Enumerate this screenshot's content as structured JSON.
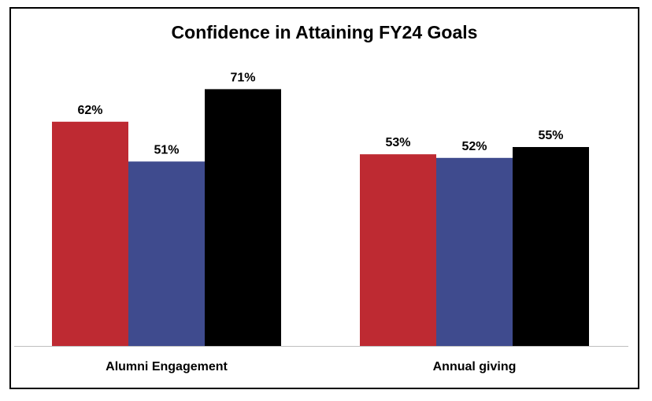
{
  "chart_data": {
    "type": "bar",
    "title": "Confidence in Attaining FY24 Goals",
    "categories": [
      "Alumni Engagement",
      "Annual giving"
    ],
    "series": [
      {
        "values": [
          62,
          53
        ],
        "labels": [
          "62%",
          "53%"
        ],
        "color": "#be2a32"
      },
      {
        "values": [
          51,
          52
        ],
        "labels": [
          "51%",
          "52%"
        ],
        "color": "#3f4b8e"
      },
      {
        "values": [
          71,
          55
        ],
        "labels": [
          "71%",
          "55%"
        ],
        "color": "#000000"
      }
    ],
    "ylim": [
      0,
      100
    ],
    "grid": false,
    "legend": "none"
  }
}
